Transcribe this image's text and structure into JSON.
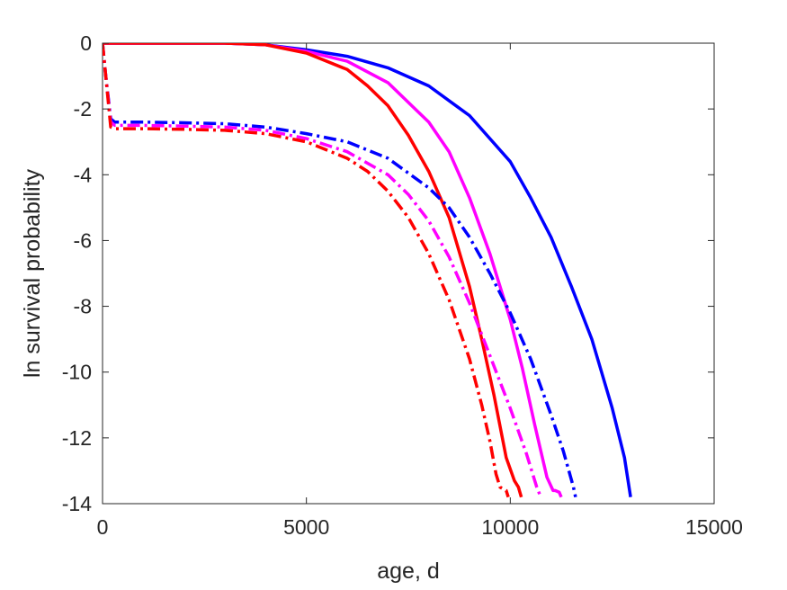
{
  "chart_data": {
    "type": "line",
    "title": "",
    "xlabel": "age, d",
    "ylabel": "ln survival probability",
    "xlim": [
      0,
      15000
    ],
    "ylim": [
      -14,
      0
    ],
    "xticks": [
      0,
      5000,
      10000,
      15000
    ],
    "yticks": [
      0,
      -2,
      -4,
      -6,
      -8,
      -10,
      -12,
      -14
    ],
    "xtick_labels": [
      "0",
      "5000",
      "10000",
      "15000"
    ],
    "ytick_labels": [
      "0",
      "-2",
      "-4",
      "-6",
      "-8",
      "-10",
      "-12",
      "-14"
    ],
    "grid": false,
    "legend": "none",
    "series": [
      {
        "color": "#0000ff",
        "style": "solid",
        "x": [
          0,
          2000,
          3000,
          4000,
          5000,
          6000,
          7000,
          8000,
          9000,
          10000,
          10500,
          11000,
          11500,
          12000,
          12500,
          12800,
          12950
        ],
        "y": [
          0,
          0,
          0,
          -0.05,
          -0.2,
          -0.4,
          -0.75,
          -1.3,
          -2.2,
          -3.6,
          -4.7,
          -5.9,
          -7.4,
          -9.0,
          -11.1,
          -12.6,
          -13.8
        ]
      },
      {
        "color": "#ff00ff",
        "style": "solid",
        "x": [
          0,
          2000,
          3000,
          4000,
          5000,
          6000,
          7000,
          8000,
          8500,
          9000,
          9500,
          10000,
          10300,
          10600,
          10900,
          11050,
          11100,
          11200,
          11250
        ],
        "y": [
          0,
          0,
          0,
          -0.05,
          -0.25,
          -0.55,
          -1.2,
          -2.4,
          -3.3,
          -4.7,
          -6.4,
          -8.4,
          -9.9,
          -11.6,
          -13.2,
          -13.6,
          -13.6,
          -13.65,
          -13.8
        ]
      },
      {
        "color": "#ff0000",
        "style": "solid",
        "x": [
          0,
          2000,
          3000,
          4000,
          5000,
          6000,
          6500,
          7000,
          7500,
          8000,
          8500,
          9000,
          9300,
          9600,
          9900,
          10100,
          10200,
          10270
        ],
        "y": [
          0,
          0,
          0,
          -0.05,
          -0.3,
          -0.8,
          -1.3,
          -1.9,
          -2.8,
          -3.9,
          -5.3,
          -7.4,
          -9.0,
          -10.7,
          -12.6,
          -13.3,
          -13.5,
          -13.8
        ]
      },
      {
        "color": "#0000ff",
        "style": "dashdot",
        "x": [
          0,
          80,
          200,
          300,
          1000,
          2000,
          3000,
          4000,
          5000,
          6000,
          7000,
          8000,
          8500,
          9000,
          9500,
          10000,
          10500,
          11000,
          11300,
          11550,
          11600
        ],
        "y": [
          0,
          -1.0,
          -2.3,
          -2.4,
          -2.4,
          -2.42,
          -2.45,
          -2.55,
          -2.75,
          -3.0,
          -3.5,
          -4.4,
          -5.0,
          -5.9,
          -7.0,
          -8.2,
          -9.6,
          -11.3,
          -12.4,
          -13.5,
          -13.8
        ]
      },
      {
        "color": "#ff00ff",
        "style": "dashdot",
        "x": [
          0,
          80,
          200,
          300,
          1000,
          2000,
          3000,
          4000,
          5000,
          6000,
          7000,
          7500,
          8000,
          8500,
          9000,
          9500,
          10000,
          10400,
          10650,
          10750
        ],
        "y": [
          0,
          -1.0,
          -2.4,
          -2.5,
          -2.5,
          -2.52,
          -2.55,
          -2.65,
          -2.9,
          -3.3,
          -4.0,
          -4.6,
          -5.4,
          -6.5,
          -7.9,
          -9.5,
          -11.1,
          -12.5,
          -13.5,
          -13.8
        ]
      },
      {
        "color": "#ff0000",
        "style": "dashdot",
        "x": [
          0,
          80,
          200,
          300,
          1000,
          2000,
          3000,
          4000,
          5000,
          6000,
          6500,
          7000,
          7500,
          8000,
          8500,
          9000,
          9300,
          9500,
          9650,
          9750,
          9900,
          9950
        ],
        "y": [
          0,
          -1.0,
          -2.55,
          -2.6,
          -2.6,
          -2.62,
          -2.65,
          -2.75,
          -3.0,
          -3.5,
          -3.9,
          -4.5,
          -5.3,
          -6.4,
          -7.8,
          -9.6,
          -11.0,
          -12.1,
          -13.1,
          -13.5,
          -13.6,
          -13.8
        ]
      }
    ]
  }
}
